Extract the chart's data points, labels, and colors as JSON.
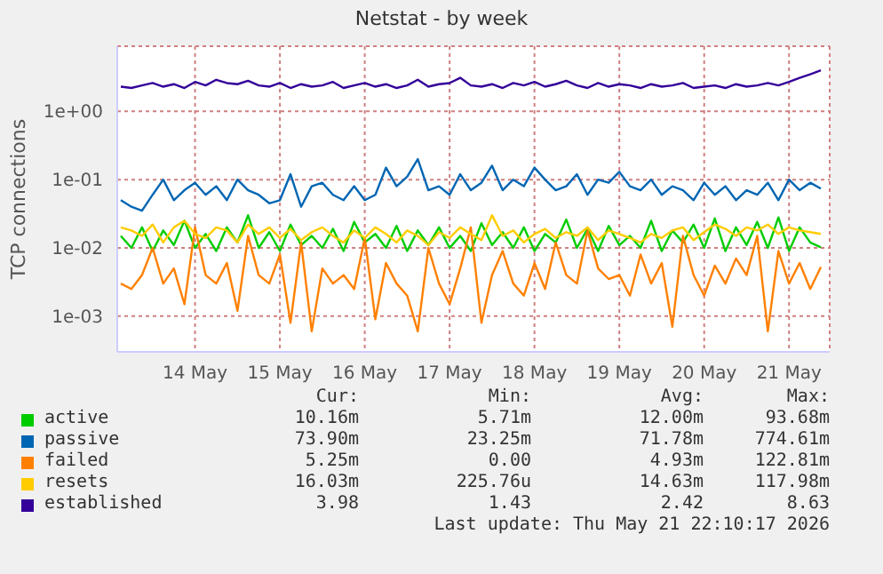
{
  "chart_data": {
    "type": "line",
    "title": "Netstat - by week",
    "ylabel": "TCP connections",
    "log": true,
    "grid": true,
    "legend": "bottom",
    "marker": "none",
    "line_style": "solid",
    "ylim": [
      0.0003,
      9
    ],
    "yticks": [
      {
        "value": 0.001,
        "label": "1e-03"
      },
      {
        "value": 0.01,
        "label": "1e-02"
      },
      {
        "value": 0.1,
        "label": "1e-01"
      },
      {
        "value": 1,
        "label": "1e+00"
      }
    ],
    "xlim": [
      "2026-05-13T14:00",
      "2026-05-21T23:30"
    ],
    "xticks": [
      {
        "value": "2026-05-14T12:00",
        "label": "14 May"
      },
      {
        "value": "2026-05-15T12:00",
        "label": "15 May"
      },
      {
        "value": "2026-05-16T12:00",
        "label": "16 May"
      },
      {
        "value": "2026-05-17T12:00",
        "label": "17 May"
      },
      {
        "value": "2026-05-18T12:00",
        "label": "18 May"
      },
      {
        "value": "2026-05-19T12:00",
        "label": "19 May"
      },
      {
        "value": "2026-05-20T12:00",
        "label": "20 May"
      },
      {
        "value": "2026-05-21T12:00",
        "label": "21 May"
      }
    ],
    "x": [
      "2026-05-13T15:00",
      "2026-05-13T18:00",
      "2026-05-13T21:00",
      "2026-05-14T00:00",
      "2026-05-14T03:00",
      "2026-05-14T06:00",
      "2026-05-14T09:00",
      "2026-05-14T12:00",
      "2026-05-14T15:00",
      "2026-05-14T18:00",
      "2026-05-14T21:00",
      "2026-05-15T00:00",
      "2026-05-15T03:00",
      "2026-05-15T06:00",
      "2026-05-15T09:00",
      "2026-05-15T12:00",
      "2026-05-15T15:00",
      "2026-05-15T18:00",
      "2026-05-15T21:00",
      "2026-05-16T00:00",
      "2026-05-16T03:00",
      "2026-05-16T06:00",
      "2026-05-16T09:00",
      "2026-05-16T12:00",
      "2026-05-16T15:00",
      "2026-05-16T18:00",
      "2026-05-16T21:00",
      "2026-05-17T00:00",
      "2026-05-17T03:00",
      "2026-05-17T06:00",
      "2026-05-17T09:00",
      "2026-05-17T12:00",
      "2026-05-17T15:00",
      "2026-05-17T18:00",
      "2026-05-17T21:00",
      "2026-05-18T00:00",
      "2026-05-18T03:00",
      "2026-05-18T06:00",
      "2026-05-18T09:00",
      "2026-05-18T12:00",
      "2026-05-18T15:00",
      "2026-05-18T18:00",
      "2026-05-18T21:00",
      "2026-05-19T00:00",
      "2026-05-19T03:00",
      "2026-05-19T06:00",
      "2026-05-19T09:00",
      "2026-05-19T12:00",
      "2026-05-19T15:00",
      "2026-05-19T18:00",
      "2026-05-19T21:00",
      "2026-05-20T00:00",
      "2026-05-20T03:00",
      "2026-05-20T06:00",
      "2026-05-20T09:00",
      "2026-05-20T12:00",
      "2026-05-20T15:00",
      "2026-05-20T18:00",
      "2026-05-20T21:00",
      "2026-05-21T00:00",
      "2026-05-21T03:00",
      "2026-05-21T06:00",
      "2026-05-21T09:00",
      "2026-05-21T12:00",
      "2026-05-21T15:00",
      "2026-05-21T18:00",
      "2026-05-21T21:00"
    ],
    "series": [
      {
        "name": "active",
        "color": "#00cc00",
        "values": [
          0.015,
          0.01,
          0.02,
          0.009,
          0.018,
          0.011,
          0.025,
          0.01,
          0.016,
          0.009,
          0.02,
          0.012,
          0.03,
          0.01,
          0.017,
          0.009,
          0.022,
          0.011,
          0.015,
          0.01,
          0.019,
          0.009,
          0.024,
          0.012,
          0.016,
          0.01,
          0.021,
          0.009,
          0.018,
          0.011,
          0.02,
          0.01,
          0.015,
          0.009,
          0.023,
          0.011,
          0.017,
          0.01,
          0.02,
          0.009,
          0.016,
          0.012,
          0.026,
          0.01,
          0.019,
          0.009,
          0.021,
          0.011,
          0.015,
          0.01,
          0.025,
          0.009,
          0.018,
          0.012,
          0.022,
          0.01,
          0.027,
          0.009,
          0.02,
          0.011,
          0.024,
          0.01,
          0.028,
          0.009,
          0.02,
          0.012,
          0.0102
        ]
      },
      {
        "name": "passive",
        "color": "#0066b3",
        "values": [
          0.05,
          0.04,
          0.035,
          0.06,
          0.1,
          0.05,
          0.07,
          0.09,
          0.06,
          0.08,
          0.05,
          0.1,
          0.07,
          0.06,
          0.045,
          0.05,
          0.12,
          0.04,
          0.08,
          0.09,
          0.06,
          0.05,
          0.08,
          0.05,
          0.06,
          0.15,
          0.08,
          0.11,
          0.2,
          0.07,
          0.08,
          0.06,
          0.12,
          0.07,
          0.09,
          0.16,
          0.07,
          0.1,
          0.08,
          0.15,
          0.1,
          0.07,
          0.08,
          0.12,
          0.06,
          0.1,
          0.09,
          0.13,
          0.08,
          0.07,
          0.1,
          0.06,
          0.08,
          0.07,
          0.05,
          0.09,
          0.06,
          0.08,
          0.05,
          0.07,
          0.06,
          0.09,
          0.05,
          0.1,
          0.07,
          0.09,
          0.074
        ]
      },
      {
        "name": "failed",
        "color": "#ff8000",
        "values": [
          0.003,
          0.0025,
          0.004,
          0.01,
          0.003,
          0.005,
          0.0015,
          0.02,
          0.004,
          0.003,
          0.006,
          0.0012,
          0.015,
          0.004,
          0.003,
          0.008,
          0.0008,
          0.012,
          0.0006,
          0.005,
          0.003,
          0.004,
          0.0025,
          0.014,
          0.0009,
          0.006,
          0.003,
          0.002,
          0.0006,
          0.01,
          0.003,
          0.0015,
          0.005,
          0.02,
          0.0008,
          0.004,
          0.009,
          0.003,
          0.002,
          0.006,
          0.0025,
          0.012,
          0.004,
          0.003,
          0.018,
          0.005,
          0.0035,
          0.004,
          0.002,
          0.008,
          0.003,
          0.006,
          0.0007,
          0.015,
          0.004,
          0.002,
          0.0055,
          0.003,
          0.007,
          0.004,
          0.015,
          0.0006,
          0.009,
          0.003,
          0.006,
          0.0025,
          0.00525
        ]
      },
      {
        "name": "resets",
        "color": "#ffcc00",
        "values": [
          0.02,
          0.018,
          0.015,
          0.022,
          0.012,
          0.02,
          0.025,
          0.016,
          0.014,
          0.02,
          0.018,
          0.012,
          0.022,
          0.016,
          0.02,
          0.014,
          0.019,
          0.013,
          0.017,
          0.02,
          0.015,
          0.012,
          0.018,
          0.014,
          0.02,
          0.016,
          0.012,
          0.018,
          0.015,
          0.011,
          0.017,
          0.014,
          0.02,
          0.016,
          0.013,
          0.03,
          0.015,
          0.018,
          0.012,
          0.016,
          0.019,
          0.014,
          0.017,
          0.015,
          0.02,
          0.013,
          0.018,
          0.016,
          0.014,
          0.012,
          0.016,
          0.014,
          0.018,
          0.02,
          0.013,
          0.017,
          0.022,
          0.019,
          0.015,
          0.02,
          0.018,
          0.022,
          0.016,
          0.02,
          0.018,
          0.017,
          0.016
        ]
      },
      {
        "name": "established",
        "color": "#330099",
        "values": [
          2.3,
          2.2,
          2.4,
          2.6,
          2.3,
          2.5,
          2.2,
          2.7,
          2.4,
          2.9,
          2.6,
          2.5,
          2.8,
          2.4,
          2.3,
          2.6,
          2.2,
          2.5,
          2.3,
          2.4,
          2.7,
          2.2,
          2.4,
          2.6,
          2.3,
          2.5,
          2.2,
          2.4,
          2.9,
          2.3,
          2.5,
          2.6,
          3.1,
          2.4,
          2.3,
          2.5,
          2.2,
          2.6,
          2.4,
          2.7,
          2.3,
          2.5,
          2.8,
          2.4,
          2.2,
          2.6,
          2.3,
          2.5,
          2.4,
          2.2,
          2.5,
          2.3,
          2.4,
          2.6,
          2.2,
          2.3,
          2.4,
          2.2,
          2.5,
          2.3,
          2.4,
          2.6,
          2.4,
          2.7,
          3.1,
          3.5,
          3.98
        ]
      }
    ],
    "annotations": [
      "Cur:",
      "Min:",
      "Avg:",
      "Max:",
      "10.16m",
      "5.71m",
      "12.00m",
      "93.68m",
      "73.90m",
      "23.25m",
      "71.78m",
      "774.61m",
      "5.25m",
      "0.00",
      "4.93m",
      "122.81m",
      "16.03m",
      "225.76u",
      "14.63m",
      "117.98m",
      "3.98",
      "1.43",
      "2.42",
      "8.63",
      "Last update: Thu May 21 22:10:17 2026"
    ]
  }
}
